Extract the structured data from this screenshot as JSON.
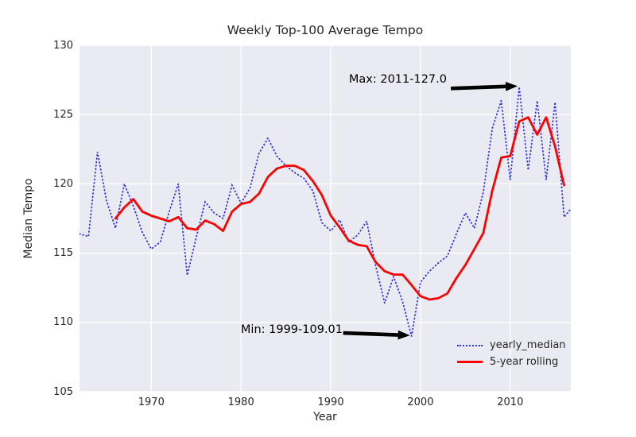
{
  "title": "Weekly Top-100 Average Tempo",
  "axis": {
    "xlabel": "Year",
    "ylabel": "Median Tempo"
  },
  "annotations": {
    "max": {
      "text": "Max: 2011-127.0"
    },
    "min": {
      "text": "Min: 1999-109.01"
    }
  },
  "legend": {
    "items": [
      {
        "label": "yearly_median",
        "style": "dotted",
        "color": "#3232dc"
      },
      {
        "label": "5-year rolling",
        "style": "solid",
        "color": "#fe0000"
      }
    ]
  },
  "colors": {
    "axes_background": "#eaeaf2",
    "grid": "#ffffff",
    "yearly_median": "#3232dc",
    "rolling": "#fe0000",
    "arrow": "#000000",
    "text": "#262626"
  },
  "chart_data": {
    "type": "line",
    "title": "Weekly Top-100 Average Tempo",
    "xlabel": "Year",
    "ylabel": "Median Tempo",
    "xlim": [
      1962,
      2016.75
    ],
    "ylim": [
      105,
      130
    ],
    "xticks": [
      1970,
      1980,
      1990,
      2000,
      2010
    ],
    "yticks": [
      105,
      110,
      115,
      120,
      125,
      130
    ],
    "grid": true,
    "legend_position": "lower right",
    "series": [
      {
        "name": "yearly_median",
        "style": "dotted",
        "color": "#3232dc",
        "x": [
          1962,
          1963,
          1964,
          1965,
          1966,
          1967,
          1968,
          1969,
          1970,
          1971,
          1972,
          1973,
          1974,
          1975,
          1976,
          1977,
          1978,
          1979,
          1980,
          1981,
          1982,
          1983,
          1984,
          1985,
          1986,
          1987,
          1988,
          1989,
          1990,
          1991,
          1992,
          1993,
          1994,
          1995,
          1996,
          1997,
          1998,
          1999,
          2000,
          2001,
          2002,
          2003,
          2004,
          2005,
          2006,
          2007,
          2008,
          2009,
          2010,
          2011,
          2012,
          2013,
          2014,
          2015,
          2016,
          2017
        ],
        "y": [
          116.4,
          116.2,
          122.3,
          118.8,
          116.8,
          120.0,
          118.4,
          116.5,
          115.3,
          115.8,
          118.0,
          120.0,
          113.4,
          116.1,
          118.7,
          117.9,
          117.5,
          119.9,
          118.6,
          119.7,
          122.2,
          123.3,
          122.0,
          121.3,
          120.8,
          120.4,
          119.5,
          117.2,
          116.6,
          117.4,
          115.8,
          116.3,
          117.3,
          114.1,
          111.4,
          113.3,
          111.5,
          109.01,
          112.9,
          113.7,
          114.3,
          114.8,
          116.4,
          117.9,
          116.8,
          119.4,
          124.0,
          126.0,
          120.3,
          127.0,
          121.0,
          126.0,
          120.3,
          125.9,
          117.6,
          118.4
        ]
      },
      {
        "name": "5-year rolling",
        "style": "solid",
        "color": "#fe0000",
        "x": [
          1966,
          1967,
          1968,
          1969,
          1970,
          1971,
          1972,
          1973,
          1974,
          1975,
          1976,
          1977,
          1978,
          1979,
          1980,
          1981,
          1982,
          1983,
          1984,
          1985,
          1986,
          1987,
          1988,
          1989,
          1990,
          1991,
          1992,
          1993,
          1994,
          1995,
          1996,
          1997,
          1998,
          1999,
          2000,
          2001,
          2002,
          2003,
          2004,
          2005,
          2006,
          2007,
          2008,
          2009,
          2010,
          2011,
          2012,
          2013,
          2014,
          2015,
          2016
        ],
        "y": [
          117.5,
          118.3,
          118.9,
          118.0,
          117.7,
          117.5,
          117.3,
          117.6,
          116.8,
          116.7,
          117.35,
          117.1,
          116.6,
          118.0,
          118.55,
          118.7,
          119.3,
          120.5,
          121.1,
          121.3,
          121.3,
          121.0,
          120.2,
          119.2,
          117.7,
          116.85,
          115.9,
          115.6,
          115.5,
          114.35,
          113.7,
          113.45,
          113.45,
          112.7,
          111.9,
          111.65,
          111.75,
          112.1,
          113.2,
          114.15,
          115.3,
          116.45,
          119.5,
          121.9,
          122.0,
          124.5,
          124.8,
          123.55,
          124.8,
          122.7,
          119.9
        ]
      }
    ],
    "annotations": [
      {
        "text": "Max: 2011-127.0",
        "target_year": 2011,
        "target_value": 127.0,
        "direction": "right",
        "tail_dy": 3
      },
      {
        "text": "Min: 1999-109.01",
        "target_year": 1999,
        "target_value": 109.01,
        "direction": "right",
        "tail_dy": -3
      }
    ]
  }
}
